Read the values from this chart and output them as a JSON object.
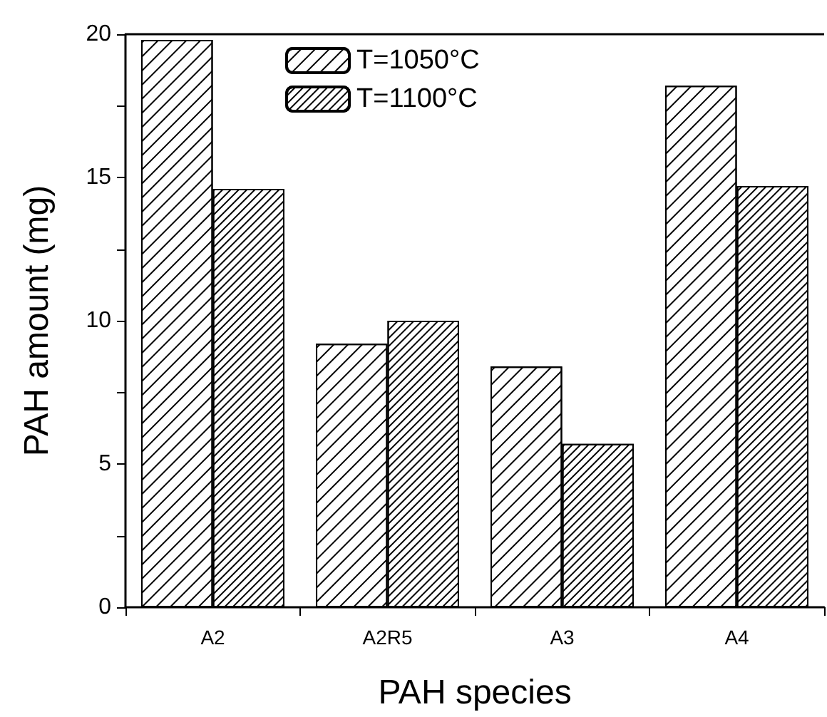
{
  "chart_data": {
    "type": "bar",
    "xlabel": "PAH species",
    "ylabel": "PAH amount (mg)",
    "categories": [
      "A2",
      "A2R5",
      "A3",
      "A4"
    ],
    "series": [
      {
        "name": "T=1050°C",
        "color": "#ffffff",
        "values": [
          19.8,
          9.2,
          8.4,
          18.2
        ]
      },
      {
        "name": "T=1100°C",
        "color": "#ffffff",
        "values": [
          14.6,
          10.0,
          5.7,
          14.7
        ]
      }
    ],
    "ylim": [
      0,
      20
    ],
    "yticks": [
      0,
      {
        "value": 2.5,
        "label": null
      },
      5,
      {
        "value": 7.5,
        "label": null
      },
      10,
      {
        "value": 12.5,
        "label": null
      },
      15,
      {
        "value": 17.5,
        "label": null
      },
      20
    ],
    "grid": false,
    "legend": "top"
  }
}
